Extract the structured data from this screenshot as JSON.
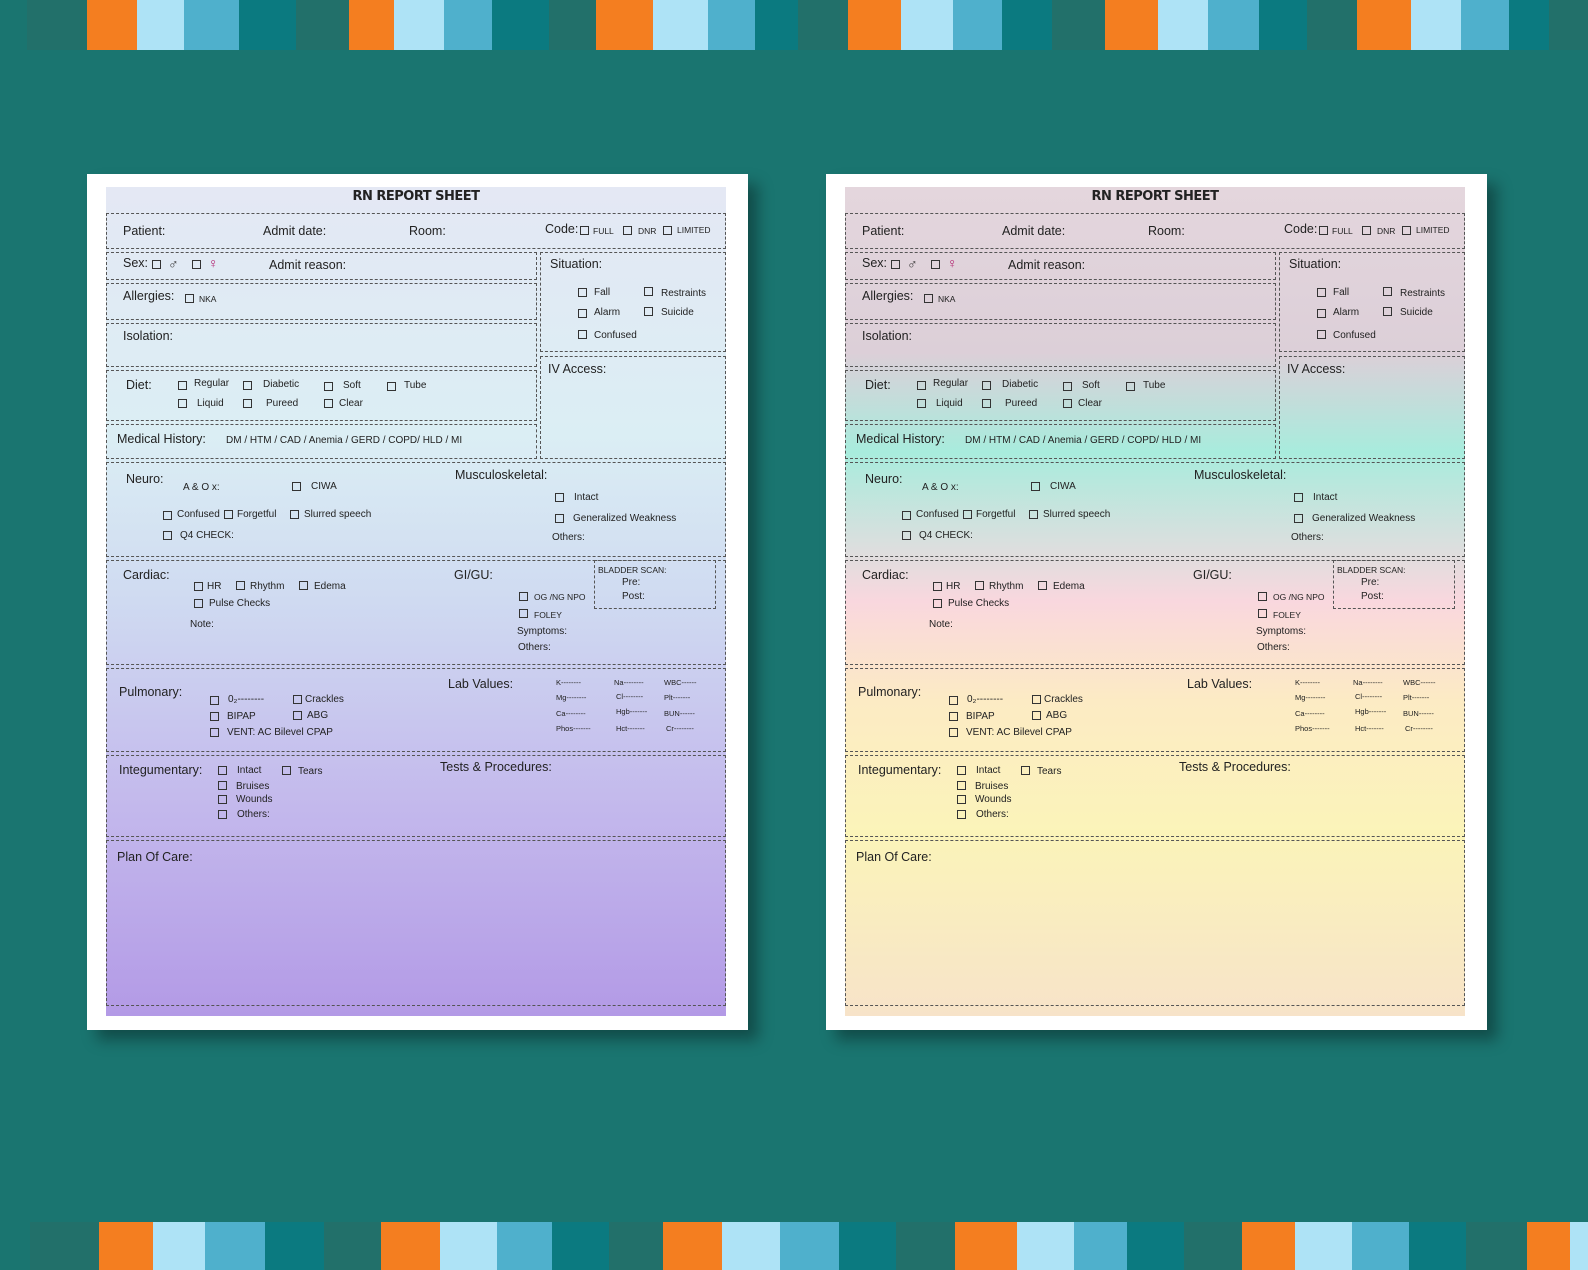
{
  "colors": {
    "background": "#1a7570",
    "stripe_palette": [
      "#1a7570",
      "#22706a",
      "#f47e20",
      "#aee3f6",
      "#4fb0cc",
      "#0b7a80"
    ]
  },
  "sheets": [
    {
      "id": "purple",
      "title": "RN REPORT SHEET",
      "header": {
        "patient": "Patient:",
        "admit_date": "Admit date:",
        "room": "Room:",
        "code": "Code:",
        "full": "FULL",
        "dnr": "DNR",
        "limited": "LIMITED"
      },
      "sex": {
        "label": "Sex:",
        "male_symbol": "♂",
        "female_symbol": "♀",
        "admit_reason": "Admit reason:"
      },
      "situation": {
        "label": "Situation:",
        "fall": "Fall",
        "restraints": "Restraints",
        "alarm": "Alarm",
        "suicide": "Suicide",
        "confused": "Confused"
      },
      "allergies": {
        "label": "Allergies:",
        "nka": "NKA"
      },
      "isolation": {
        "label": "Isolation:"
      },
      "iv_access": {
        "label": "IV Access:"
      },
      "diet": {
        "label": "Diet:",
        "regular": "Regular",
        "diabetic": "Diabetic",
        "soft": "Soft",
        "tube": "Tube",
        "liquid": "Liquid",
        "pureed": "Pureed",
        "clear": "Clear"
      },
      "medical_history": {
        "label": "Medical History:",
        "values": "DM / HTM / CAD / Anemia / GERD / COPD/ HLD / MI"
      },
      "neuro": {
        "label": "Neuro:",
        "aox": "A & O x:",
        "ciwa": "CIWA",
        "confused": "Confused",
        "forgetful": "Forgetful",
        "slurred": "Slurred speech",
        "q4": "Q4 CHECK:"
      },
      "musculoskeletal": {
        "label": "Musculoskeletal:",
        "intact": "Intact",
        "weakness": "Generalized Weakness",
        "others": "Others:"
      },
      "cardiac": {
        "label": "Cardiac:",
        "hr": "HR",
        "rhythm": "Rhythm",
        "edema": "Edema",
        "pulse": "Pulse Checks",
        "note": "Note:"
      },
      "gigu": {
        "label": "GI/GU:",
        "og": "OG /NG NPO",
        "foley": "FOLEY",
        "symptoms": "Symptoms:",
        "others": "Others:"
      },
      "bladder": {
        "label": "BLADDER SCAN:",
        "pre": "Pre:",
        "post": "Post:"
      },
      "pulmonary": {
        "label": "Pulmonary:",
        "o2": "0₂--------",
        "crackles": "Crackles",
        "bipap": "BIPAP",
        "abg": "ABG",
        "vent": "VENT: AC Bilevel CPAP"
      },
      "lab": {
        "label": "Lab Values:",
        "k": "K--------",
        "na": "Na--------",
        "wbc": "WBC------",
        "mg": "Mg--------",
        "cl": "Cl--------",
        "plt": "Plt-------",
        "ca": "Ca--------",
        "hgb": "Hgb-------",
        "bun": "BUN------",
        "phos": "Phos-------",
        "hct": "Hct-------",
        "cr": "Cr--------"
      },
      "integ": {
        "label": "Integumentary:",
        "intact": "Intact",
        "tears": "Tears",
        "bruises": "Bruises",
        "wounds": "Wounds",
        "others": "Others:"
      },
      "tests": {
        "label": "Tests & Procedures:"
      },
      "plan": {
        "label": "Plan Of Care:"
      }
    },
    {
      "id": "pastel",
      "title": "RN REPORT SHEET",
      "header": {
        "patient": "Patient:",
        "admit_date": "Admit date:",
        "room": "Room:",
        "code": "Code:",
        "full": "FULL",
        "dnr": "DNR",
        "limited": "LIMITED"
      },
      "sex": {
        "label": "Sex:",
        "male_symbol": "♂",
        "female_symbol": "♀",
        "admit_reason": "Admit reason:"
      },
      "situation": {
        "label": "Situation:",
        "fall": "Fall",
        "restraints": "Restraints",
        "alarm": "Alarm",
        "suicide": "Suicide",
        "confused": "Confused"
      },
      "allergies": {
        "label": "Allergies:",
        "nka": "NKA"
      },
      "isolation": {
        "label": "Isolation:"
      },
      "iv_access": {
        "label": "IV Access:"
      },
      "diet": {
        "label": "Diet:",
        "regular": "Regular",
        "diabetic": "Diabetic",
        "soft": "Soft",
        "tube": "Tube",
        "liquid": "Liquid",
        "pureed": "Pureed",
        "clear": "Clear"
      },
      "medical_history": {
        "label": "Medical History:",
        "values": "DM / HTM / CAD / Anemia / GERD / COPD/ HLD / MI"
      },
      "neuro": {
        "label": "Neuro:",
        "aox": "A & O x:",
        "ciwa": "CIWA",
        "confused": "Confused",
        "forgetful": "Forgetful",
        "slurred": "Slurred speech",
        "q4": "Q4 CHECK:"
      },
      "musculoskeletal": {
        "label": "Musculoskeletal:",
        "intact": "Intact",
        "weakness": "Generalized Weakness",
        "others": "Others:"
      },
      "cardiac": {
        "label": "Cardiac:",
        "hr": "HR",
        "rhythm": "Rhythm",
        "edema": "Edema",
        "pulse": "Pulse Checks",
        "note": "Note:"
      },
      "gigu": {
        "label": "GI/GU:",
        "og": "OG /NG NPO",
        "foley": "FOLEY",
        "symptoms": "Symptoms:",
        "others": "Others:"
      },
      "bladder": {
        "label": "BLADDER SCAN:",
        "pre": "Pre:",
        "post": "Post:"
      },
      "pulmonary": {
        "label": "Pulmonary:",
        "o2": "0₂--------",
        "crackles": "Crackles",
        "bipap": "BIPAP",
        "abg": "ABG",
        "vent": "VENT: AC Bilevel CPAP"
      },
      "lab": {
        "label": "Lab Values:",
        "k": "K--------",
        "na": "Na--------",
        "wbc": "WBC------",
        "mg": "Mg--------",
        "cl": "Cl--------",
        "plt": "Plt-------",
        "ca": "Ca--------",
        "hgb": "Hgb-------",
        "bun": "BUN------",
        "phos": "Phos-------",
        "hct": "Hct-------",
        "cr": "Cr--------"
      },
      "integ": {
        "label": "Integumentary:",
        "intact": "Intact",
        "tears": "Tears",
        "bruises": "Bruises",
        "wounds": "Wounds",
        "others": "Others:"
      },
      "tests": {
        "label": "Tests & Procedures:"
      },
      "plan": {
        "label": "Plan Of Care:"
      }
    }
  ]
}
